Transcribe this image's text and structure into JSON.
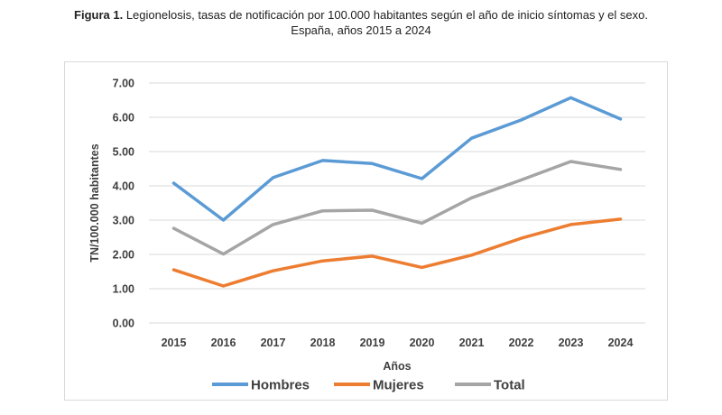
{
  "caption": {
    "label": "Figura 1.",
    "line1": "Legionelosis, tasas de notificación por 100.000 habitantes según el año de inicio síntomas y el sexo.",
    "line2": "España, años 2015 a 2024"
  },
  "chart_data": {
    "type": "line",
    "title": "",
    "xlabel": "Años",
    "ylabel": "TN/100.000 habitantes",
    "x": [
      "2015",
      "2016",
      "2017",
      "2018",
      "2019",
      "2020",
      "2021",
      "2022",
      "2023",
      "2024"
    ],
    "ylim": [
      0,
      7
    ],
    "y_ticks": [
      "0.00",
      "1.00",
      "2.00",
      "3.00",
      "4.00",
      "5.00",
      "6.00",
      "7.00"
    ],
    "grid": true,
    "legend_position": "bottom",
    "series": [
      {
        "name": "Hombres",
        "color": "#5b9bd5",
        "values": [
          4.08,
          3.0,
          4.24,
          4.74,
          4.65,
          4.21,
          5.39,
          5.92,
          6.57,
          5.95
        ]
      },
      {
        "name": "Mujeres",
        "color": "#ed7d31",
        "values": [
          1.55,
          1.08,
          1.52,
          1.81,
          1.95,
          1.62,
          1.98,
          2.47,
          2.87,
          3.03
        ]
      },
      {
        "name": "Total",
        "color": "#a5a5a5",
        "values": [
          2.76,
          2.01,
          2.87,
          3.27,
          3.29,
          2.91,
          3.65,
          4.17,
          4.71,
          4.48
        ]
      }
    ]
  }
}
